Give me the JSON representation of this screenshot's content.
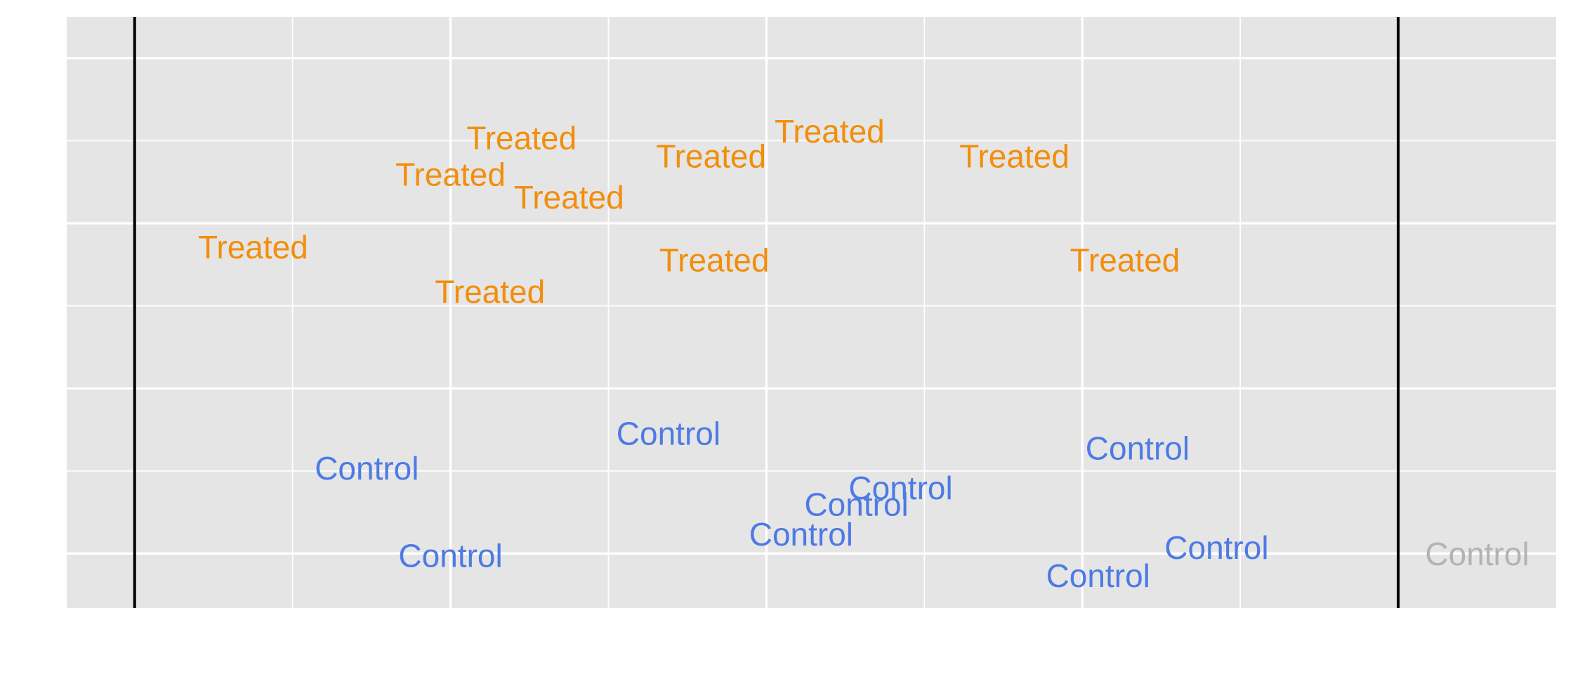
{
  "chart_data": {
    "type": "scatter",
    "title": "",
    "xlabel": "",
    "ylabel": "",
    "xlim": [
      -0.43,
      9.0
    ],
    "ylim": [
      -0.33,
      3.25
    ],
    "x_major_ticks": [
      0,
      2,
      4,
      6,
      8
    ],
    "x_minor_ticks": [
      1,
      3,
      5,
      7
    ],
    "y_major_ticks": [
      0,
      1,
      2,
      3
    ],
    "y_minor_ticks": [
      0.5,
      1.5,
      2.5
    ],
    "x_tick_labels_visible": false,
    "y_tick_labels_visible": false,
    "grid": true,
    "vlines": [
      0,
      8
    ],
    "series": [
      {
        "name": "Treated",
        "color": "#f28e0c",
        "points": [
          {
            "x": 0.75,
            "y": 1.84,
            "label": "Treated"
          },
          {
            "x": 2.0,
            "y": 2.28,
            "label": "Treated"
          },
          {
            "x": 2.25,
            "y": 1.57,
            "label": "Treated"
          },
          {
            "x": 2.45,
            "y": 2.5,
            "label": "Treated"
          },
          {
            "x": 2.75,
            "y": 2.14,
            "label": "Treated"
          },
          {
            "x": 3.65,
            "y": 2.39,
            "label": "Treated"
          },
          {
            "x": 3.67,
            "y": 1.76,
            "label": "Treated"
          },
          {
            "x": 4.4,
            "y": 2.54,
            "label": "Treated"
          },
          {
            "x": 5.57,
            "y": 2.39,
            "label": "Treated"
          },
          {
            "x": 6.27,
            "y": 1.76,
            "label": "Treated"
          }
        ]
      },
      {
        "name": "Control",
        "color": "#4d7ae5",
        "points": [
          {
            "x": 1.47,
            "y": 0.5,
            "label": "Control"
          },
          {
            "x": 2.0,
            "y": -0.03,
            "label": "Control"
          },
          {
            "x": 3.38,
            "y": 0.71,
            "label": "Control"
          },
          {
            "x": 4.22,
            "y": 0.1,
            "label": "Control"
          },
          {
            "x": 4.57,
            "y": 0.28,
            "label": "Control"
          },
          {
            "x": 4.85,
            "y": 0.38,
            "label": "Control"
          },
          {
            "x": 6.1,
            "y": -0.15,
            "label": "Control"
          },
          {
            "x": 6.35,
            "y": 0.62,
            "label": "Control"
          },
          {
            "x": 6.85,
            "y": 0.02,
            "label": "Control"
          }
        ]
      },
      {
        "name": "Control",
        "color": "#b3b3b3",
        "points": [
          {
            "x": 8.5,
            "y": -0.02,
            "label": "Control"
          }
        ]
      }
    ]
  }
}
